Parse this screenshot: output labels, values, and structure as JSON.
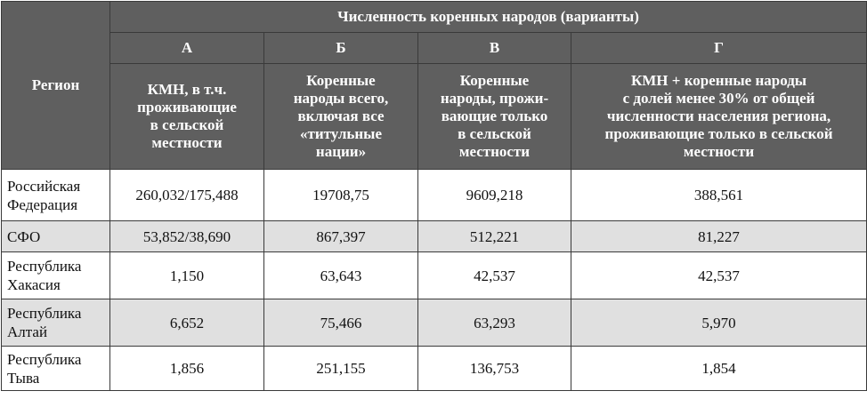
{
  "header": {
    "region_label": "Регион",
    "group_title": "Численность коренных народов (варианты)",
    "variants": [
      {
        "letter": "А",
        "lines": [
          "КМН, в т.ч.",
          "проживающие",
          "в сельской",
          "местности"
        ]
      },
      {
        "letter": "Б",
        "lines": [
          "Коренные",
          "народы всего,",
          "включая все",
          "«титульные",
          "нации»"
        ]
      },
      {
        "letter": "В",
        "lines": [
          "Коренные",
          "народы, прожи-",
          "вающие только",
          "в сельской",
          "местности"
        ]
      },
      {
        "letter": "Г",
        "lines": [
          "КМН + коренные народы",
          "с долей менее 30% от общей",
          "численности населения региона,",
          "проживающие только в сельской",
          "местности"
        ]
      }
    ]
  },
  "rows": [
    {
      "region": [
        "Российская",
        "Федерация"
      ],
      "values": [
        "260,032/175,488",
        "19708,75",
        "9609,218",
        "388,561"
      ]
    },
    {
      "region": [
        "СФО"
      ],
      "values": [
        "53,852/38,690",
        "867,397",
        "512,221",
        "81,227"
      ]
    },
    {
      "region": [
        "Республика",
        "Хакасия"
      ],
      "values": [
        "1,150",
        "63,643",
        "42,537",
        "42,537"
      ]
    },
    {
      "region": [
        "Республика",
        "Алтай"
      ],
      "values": [
        "6,652",
        "75,466",
        "63,293",
        "5,970"
      ]
    },
    {
      "region": [
        "Республика",
        "Тыва"
      ],
      "values": [
        "1,856",
        "251,155",
        "136,753",
        "1,854"
      ]
    }
  ]
}
